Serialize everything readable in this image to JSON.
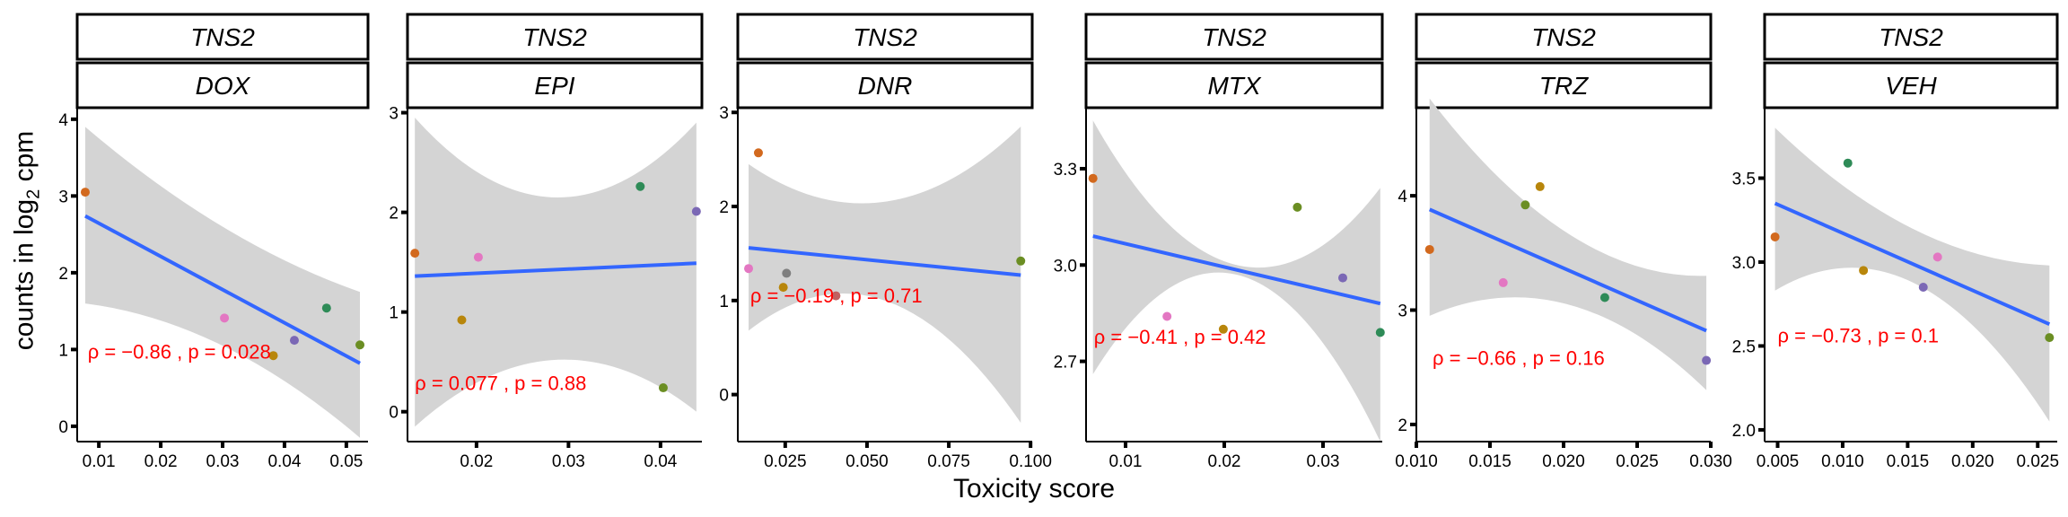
{
  "chart_data": {
    "type": "scatter",
    "xlabel": "Toxicity score",
    "ylabel": {
      "prefix": "counts in log",
      "sub": "2",
      "suffix": " cpm"
    },
    "facet_top": "TNS2",
    "point_colors": [
      "#d2691e",
      "#b8860b",
      "#e377c2",
      "#7f7f7f",
      "#6b8e23",
      "#2e8b57",
      "#7b68b5",
      "#3cb371",
      "#c06060"
    ],
    "band_color": "#d4d4d4",
    "line_color": "#3366ff",
    "stat_color": "#ff0000",
    "panels": [
      {
        "facet": "DOX",
        "xlim": [
          0.0065,
          0.0535
        ],
        "ylim": [
          -0.2,
          4.15
        ],
        "xticks": [
          0.01,
          0.02,
          0.03,
          0.04,
          0.05
        ],
        "xtick_labels": [
          "0.01",
          "0.02",
          "0.03",
          "0.04",
          "0.05"
        ],
        "yticks": [
          0,
          1,
          2,
          3,
          4
        ],
        "ytick_labels": [
          "0",
          "1",
          "2",
          "3",
          "4"
        ],
        "points": [
          {
            "x": 0.0078,
            "y": 3.05,
            "c": "#d2691e"
          },
          {
            "x": 0.0303,
            "y": 1.41,
            "c": "#e377c2"
          },
          {
            "x": 0.0382,
            "y": 0.92,
            "c": "#b8860b"
          },
          {
            "x": 0.0416,
            "y": 1.12,
            "c": "#7b68b5"
          },
          {
            "x": 0.0468,
            "y": 1.54,
            "c": "#2e8b57"
          },
          {
            "x": 0.0522,
            "y": 1.06,
            "c": "#6b8e23"
          }
        ],
        "fit": {
          "x": [
            0.0078,
            0.0522
          ],
          "y": [
            2.74,
            0.82
          ]
        },
        "band": {
          "upper": [
            3.9,
            2.6,
            1.75
          ],
          "lower": [
            1.6,
            1.05,
            -0.15
          ]
        },
        "stat": {
          "rho_text": "ρ = −0.86",
          "p_text": "p = 0.028",
          "x": 0.0082,
          "y": 0.88
        }
      },
      {
        "facet": "EPI",
        "xlim": [
          0.0125,
          0.0445
        ],
        "ylim": [
          -0.3,
          3.05
        ],
        "xticks": [
          0.02,
          0.03,
          0.04
        ],
        "xtick_labels": [
          "0.02",
          "0.03",
          "0.04"
        ],
        "yticks": [
          0,
          1,
          2,
          3
        ],
        "ytick_labels": [
          "0",
          "1",
          "2",
          "3"
        ],
        "points": [
          {
            "x": 0.0133,
            "y": 1.59,
            "c": "#d2691e"
          },
          {
            "x": 0.0184,
            "y": 0.92,
            "c": "#b8860b"
          },
          {
            "x": 0.0202,
            "y": 1.55,
            "c": "#e377c2"
          },
          {
            "x": 0.0378,
            "y": 2.26,
            "c": "#2e8b57"
          },
          {
            "x": 0.0403,
            "y": 0.24,
            "c": "#6b8e23"
          },
          {
            "x": 0.0439,
            "y": 2.01,
            "c": "#7b68b5"
          }
        ],
        "fit": {
          "x": [
            0.0133,
            0.0439
          ],
          "y": [
            1.36,
            1.49
          ]
        },
        "band": {
          "upper": [
            2.95,
            2.15,
            2.9
          ],
          "lower": [
            -0.15,
            0.52,
            0.0
          ]
        },
        "stat": {
          "rho_text": "ρ = 0.077",
          "p_text": "p = 0.88",
          "x": 0.0133,
          "y": 0.22
        }
      },
      {
        "facet": "DNR",
        "xlim": [
          0.0105,
          0.1005
        ],
        "ylim": [
          -0.5,
          3.05
        ],
        "xticks": [
          0.025,
          0.05,
          0.075,
          0.1
        ],
        "xtick_labels": [
          "0.025",
          "0.050",
          "0.075",
          "0.100"
        ],
        "yticks": [
          0,
          1,
          2,
          3
        ],
        "ytick_labels": [
          "0",
          "1",
          "2",
          "3"
        ],
        "points": [
          {
            "x": 0.0138,
            "y": 1.34,
            "c": "#e377c2"
          },
          {
            "x": 0.0168,
            "y": 2.57,
            "c": "#d2691e"
          },
          {
            "x": 0.0244,
            "y": 1.14,
            "c": "#b8860b"
          },
          {
            "x": 0.0254,
            "y": 1.29,
            "c": "#7f7f7f"
          },
          {
            "x": 0.0405,
            "y": 1.05,
            "c": "#c06060"
          },
          {
            "x": 0.097,
            "y": 1.42,
            "c": "#6b8e23"
          }
        ],
        "fit": {
          "x": [
            0.0138,
            0.097
          ],
          "y": [
            1.56,
            1.27
          ]
        },
        "band": {
          "upper": [
            2.45,
            2.05,
            2.85
          ],
          "lower": [
            0.68,
            1.0,
            -0.3
          ]
        },
        "stat": {
          "rho_text": "ρ = −0.19",
          "p_text": "p = 0.71",
          "x": 0.0143,
          "y": 0.98
        }
      },
      {
        "facet": "MTX",
        "xlim": [
          0.006,
          0.036
        ],
        "ylim": [
          2.45,
          3.49
        ],
        "xticks": [
          0.01,
          0.02,
          0.03
        ],
        "xtick_labels": [
          "0.01",
          "0.02",
          "0.03"
        ],
        "yticks": [
          2.7,
          3.0,
          3.3
        ],
        "ytick_labels": [
          "2.7",
          "3.0",
          "3.3"
        ],
        "points": [
          {
            "x": 0.0067,
            "y": 3.27,
            "c": "#d2691e"
          },
          {
            "x": 0.0142,
            "y": 2.84,
            "c": "#e377c2"
          },
          {
            "x": 0.0199,
            "y": 2.8,
            "c": "#b8860b"
          },
          {
            "x": 0.0274,
            "y": 3.18,
            "c": "#6b8e23"
          },
          {
            "x": 0.032,
            "y": 2.96,
            "c": "#7b68b5"
          },
          {
            "x": 0.0358,
            "y": 2.79,
            "c": "#2e8b57"
          }
        ],
        "fit": {
          "x": [
            0.0067,
            0.0358
          ],
          "y": [
            3.09,
            2.88
          ]
        },
        "band": {
          "upper": [
            3.45,
            3.0,
            3.24
          ],
          "lower": [
            2.66,
            2.97,
            2.45
          ]
        },
        "stat": {
          "rho_text": "ρ = −0.41",
          "p_text": "p = 0.42",
          "x": 0.0068,
          "y": 2.755
        }
      },
      {
        "facet": "TRZ",
        "xlim": [
          0.01,
          0.03
        ],
        "ylim": [
          1.85,
          4.77
        ],
        "xticks": [
          0.01,
          0.015,
          0.02,
          0.025,
          0.03
        ],
        "xtick_labels": [
          "0.010",
          "0.015",
          "0.020",
          "0.025",
          "0.030"
        ],
        "yticks": [
          2,
          3,
          4
        ],
        "ytick_labels": [
          "2",
          "3",
          "4"
        ],
        "points": [
          {
            "x": 0.0109,
            "y": 3.53,
            "c": "#d2691e"
          },
          {
            "x": 0.0159,
            "y": 3.24,
            "c": "#e377c2"
          },
          {
            "x": 0.0174,
            "y": 3.92,
            "c": "#6b8e23"
          },
          {
            "x": 0.0184,
            "y": 4.08,
            "c": "#b8860b"
          },
          {
            "x": 0.0228,
            "y": 3.11,
            "c": "#2e8b57"
          },
          {
            "x": 0.0297,
            "y": 2.56,
            "c": "#7b68b5"
          }
        ],
        "fit": {
          "x": [
            0.0109,
            0.0297
          ],
          "y": [
            3.88,
            2.82
          ]
        },
        "band": {
          "upper": [
            4.85,
            3.67,
            3.3
          ],
          "lower": [
            2.95,
            3.05,
            2.3
          ]
        },
        "stat": {
          "rho_text": "ρ = −0.66",
          "p_text": "p = 0.16",
          "x": 0.0111,
          "y": 2.52
        }
      },
      {
        "facet": "VEH",
        "xlim": [
          0.004,
          0.0265
        ],
        "ylim": [
          1.93,
          3.92
        ],
        "xticks": [
          0.005,
          0.01,
          0.015,
          0.02,
          0.025
        ],
        "xtick_labels": [
          "0.005",
          "0.010",
          "0.015",
          "0.020",
          "0.025"
        ],
        "yticks": [
          2.0,
          2.5,
          3.0,
          3.5
        ],
        "ytick_labels": [
          "2.0",
          "2.5",
          "3.0",
          "3.5"
        ],
        "points": [
          {
            "x": 0.0048,
            "y": 3.15,
            "c": "#d2691e"
          },
          {
            "x": 0.0104,
            "y": 3.59,
            "c": "#2e8b57"
          },
          {
            "x": 0.0116,
            "y": 2.95,
            "c": "#b8860b"
          },
          {
            "x": 0.0162,
            "y": 2.85,
            "c": "#7b68b5"
          },
          {
            "x": 0.0173,
            "y": 3.03,
            "c": "#e377c2"
          },
          {
            "x": 0.0259,
            "y": 2.55,
            "c": "#6b8e23"
          }
        ],
        "fit": {
          "x": [
            0.0048,
            0.0259
          ],
          "y": [
            3.35,
            2.63
          ]
        },
        "band": {
          "upper": [
            3.8,
            3.2,
            2.98
          ],
          "lower": [
            2.83,
            2.88,
            2.05
          ]
        },
        "stat": {
          "rho_text": "ρ = −0.73",
          "p_text": "p = 0.1",
          "x": 0.005,
          "y": 2.52
        }
      }
    ]
  }
}
